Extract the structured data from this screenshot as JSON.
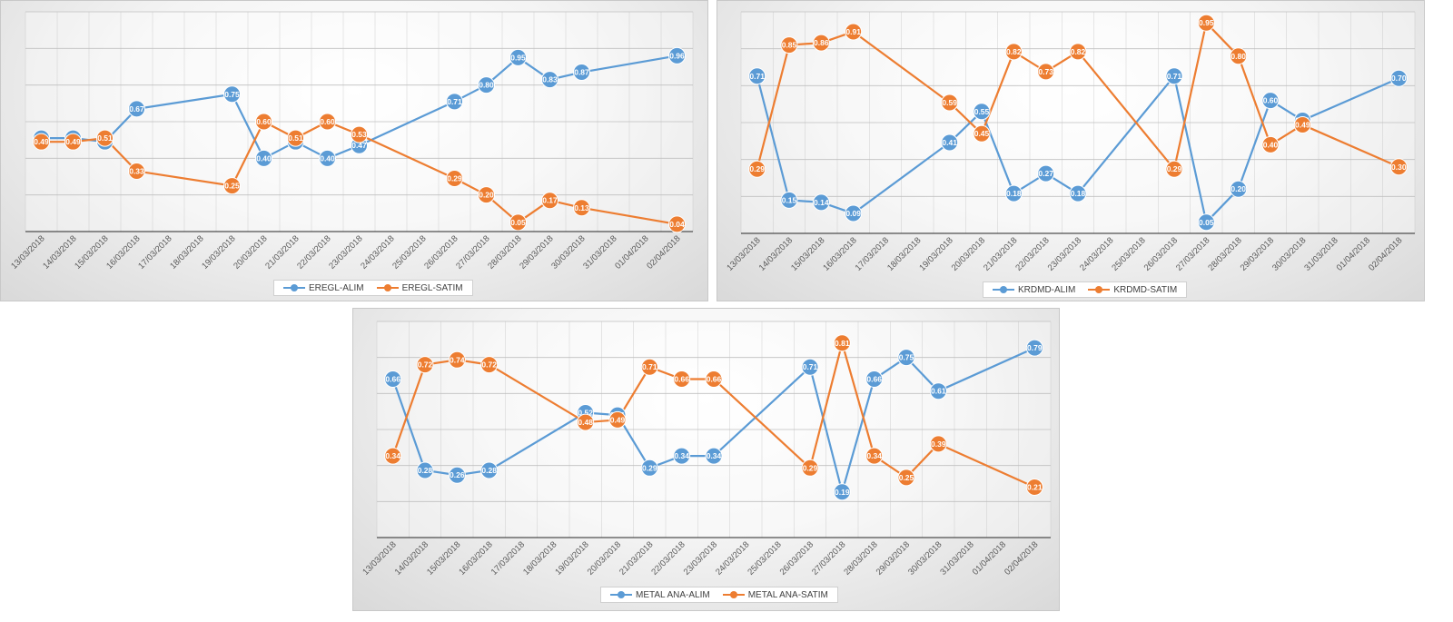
{
  "colors": {
    "alim": "#5B9BD5",
    "satim": "#ED7D31",
    "grid": "#bfbfbf",
    "axis": "#262626"
  },
  "chart_data": [
    {
      "type": "line",
      "categories": [
        "13/03/2018",
        "14/03/2018",
        "15/03/2018",
        "16/03/2018",
        "17/03/2018",
        "18/03/2018",
        "19/03/2018",
        "20/03/2018",
        "21/03/2018",
        "22/03/2018",
        "23/03/2018",
        "24/03/2018",
        "25/03/2018",
        "26/03/2018",
        "27/03/2018",
        "28/03/2018",
        "29/03/2018",
        "30/03/2018",
        "31/03/2018",
        "01/04/2018",
        "02/04/2018"
      ],
      "ylim": [
        0,
        1.2
      ],
      "grid": true,
      "legend_position": "bottom",
      "series": [
        {
          "name": "EREGL-ALIM",
          "color": "alim",
          "values": [
            0.51,
            0.51,
            0.49,
            0.67,
            null,
            null,
            0.75,
            0.4,
            0.49,
            0.4,
            0.47,
            null,
            null,
            0.71,
            0.8,
            0.95,
            0.83,
            0.87,
            null,
            null,
            0.96
          ],
          "labels": [
            "0.51",
            "0.51",
            "0.49",
            "0.67",
            null,
            null,
            "0.75",
            "0.40",
            "0.49",
            "0.40",
            "0.47",
            null,
            null,
            "0.71",
            "0.80",
            "0.95",
            "0.83",
            "0.87",
            null,
            null,
            "0.96"
          ]
        },
        {
          "name": "EREGL-SATIM",
          "color": "satim",
          "values": [
            0.49,
            0.49,
            0.51,
            0.33,
            null,
            null,
            0.25,
            0.6,
            0.51,
            0.6,
            0.53,
            null,
            null,
            0.29,
            0.2,
            0.05,
            0.17,
            0.13,
            null,
            null,
            0.04
          ],
          "labels": [
            "0.49",
            "0.49",
            "0.51",
            "0.33",
            null,
            null,
            "0.25",
            "0.60",
            "0.51",
            "0.60",
            "0.53",
            null,
            null,
            "0.29",
            "0.20",
            "0.05",
            "0.17",
            "0.13",
            null,
            null,
            "0.04"
          ]
        }
      ]
    },
    {
      "type": "line",
      "categories": [
        "13/03/2018",
        "14/03/2018",
        "15/03/2018",
        "16/03/2018",
        "17/03/2018",
        "18/03/2018",
        "19/03/2018",
        "20/03/2018",
        "21/03/2018",
        "22/03/2018",
        "23/03/2018",
        "24/03/2018",
        "25/03/2018",
        "26/03/2018",
        "27/03/2018",
        "28/03/2018",
        "29/03/2018",
        "30/03/2018",
        "31/03/2018",
        "01/04/2018",
        "02/04/2018"
      ],
      "ylim": [
        0,
        1.0
      ],
      "grid": true,
      "legend_position": "bottom",
      "series": [
        {
          "name": "KRDMD-ALIM",
          "color": "alim",
          "values": [
            0.71,
            0.15,
            0.14,
            0.09,
            null,
            null,
            0.41,
            0.55,
            0.18,
            0.27,
            0.18,
            null,
            null,
            0.71,
            0.05,
            0.2,
            0.6,
            0.51,
            null,
            null,
            0.7
          ],
          "labels": [
            "0.71",
            "0.15",
            "0.14",
            "0.09",
            null,
            null,
            "0.41",
            "0.55",
            "0.18",
            "0.27",
            "0.18",
            null,
            null,
            "0.71",
            "0.05",
            "0.20",
            "0.60",
            "0.51",
            null,
            null,
            "0.70"
          ]
        },
        {
          "name": "KRDMD-SATIM",
          "color": "satim",
          "values": [
            0.29,
            0.85,
            0.86,
            0.91,
            null,
            null,
            0.59,
            0.45,
            0.82,
            0.73,
            0.82,
            null,
            null,
            0.29,
            0.95,
            0.8,
            0.4,
            0.49,
            null,
            null,
            0.3
          ],
          "labels": [
            "0.29",
            "0.85",
            "0.86",
            "0.91",
            null,
            null,
            "0.59",
            "0.45",
            "0.82",
            "0.73",
            "0.82",
            null,
            null,
            "0.29",
            "0.95",
            "0.80",
            "0.40",
            "0.49",
            null,
            null,
            "0.30"
          ]
        }
      ]
    },
    {
      "type": "line",
      "categories": [
        "13/03/2018",
        "14/03/2018",
        "15/03/2018",
        "16/03/2018",
        "17/03/2018",
        "18/03/2018",
        "19/03/2018",
        "20/03/2018",
        "21/03/2018",
        "22/03/2018",
        "23/03/2018",
        "24/03/2018",
        "25/03/2018",
        "26/03/2018",
        "27/03/2018",
        "28/03/2018",
        "29/03/2018",
        "30/03/2018",
        "31/03/2018",
        "01/04/2018",
        "02/04/2018"
      ],
      "ylim": [
        0,
        0.9
      ],
      "grid": true,
      "legend_position": "bottom",
      "series": [
        {
          "name": "METAL ANA-ALIM",
          "color": "alim",
          "values": [
            0.66,
            0.28,
            0.26,
            0.28,
            null,
            null,
            0.52,
            0.51,
            0.29,
            0.34,
            0.34,
            null,
            null,
            0.71,
            0.19,
            0.66,
            0.75,
            0.61,
            null,
            null,
            0.79
          ],
          "labels": [
            "0.66",
            "0.28",
            "0.26",
            "0.28",
            null,
            null,
            "0.52",
            "0.51",
            "0.29",
            "0.34",
            "0.34",
            null,
            null,
            "0.71",
            "0.19",
            "0.66",
            "0.75",
            "0.61",
            null,
            null,
            "0.79"
          ]
        },
        {
          "name": "METAL ANA-SATIM",
          "color": "satim",
          "values": [
            0.34,
            0.72,
            0.74,
            0.72,
            null,
            null,
            0.48,
            0.49,
            0.71,
            0.66,
            0.66,
            null,
            null,
            0.29,
            0.81,
            0.34,
            0.25,
            0.39,
            null,
            null,
            0.21
          ],
          "labels": [
            "0.34",
            "0.72",
            "0.74",
            "0.72",
            null,
            null,
            "0.48",
            "0.49",
            "0.71",
            "0.66",
            "0.66",
            null,
            null,
            "0.29",
            "0.81",
            "0.34",
            "0.25",
            "0.39",
            null,
            null,
            "0.21"
          ]
        }
      ]
    }
  ]
}
